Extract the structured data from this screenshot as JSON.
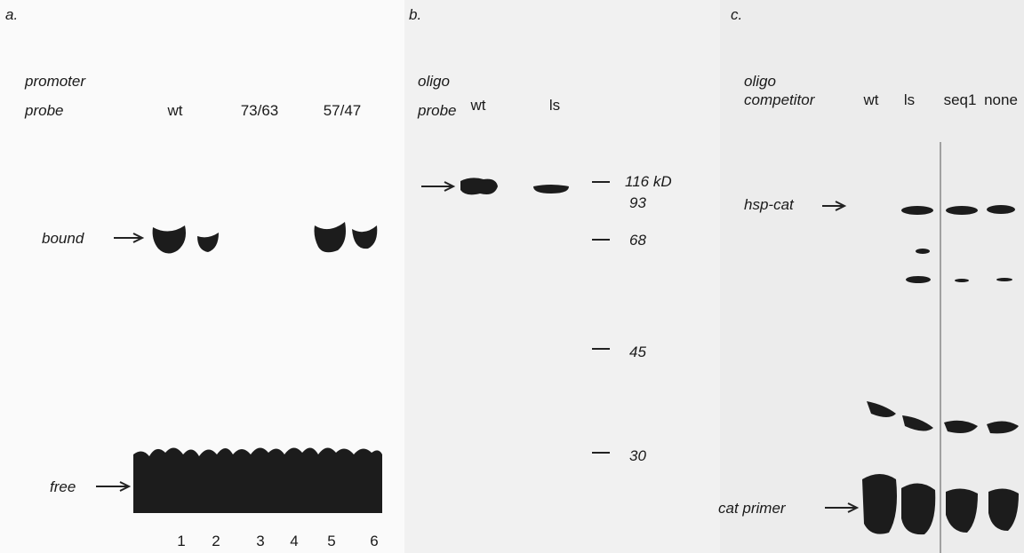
{
  "panel_a": {
    "letter": "a.",
    "row1_label": "promoter",
    "row2_label": "probe",
    "lanes_header": [
      "wt",
      "73/63",
      "57/47"
    ],
    "bound_label": "bound",
    "free_label": "free",
    "lane_numbers": [
      "1",
      "2",
      "3",
      "4",
      "5",
      "6"
    ]
  },
  "panel_b": {
    "letter": "b.",
    "row1_label": "oligo",
    "row2_label": "probe",
    "lanes_header": [
      "wt",
      "ls"
    ],
    "markers": [
      "116 kD",
      "93",
      "68",
      "45",
      "30"
    ]
  },
  "panel_c": {
    "letter": "c.",
    "row1_label": "oligo",
    "row2_label": "competitor",
    "lanes_header": [
      "wt",
      "ls",
      "seq1",
      "none"
    ],
    "hsp_label": "hsp-cat",
    "primer_label": "cat primer"
  }
}
